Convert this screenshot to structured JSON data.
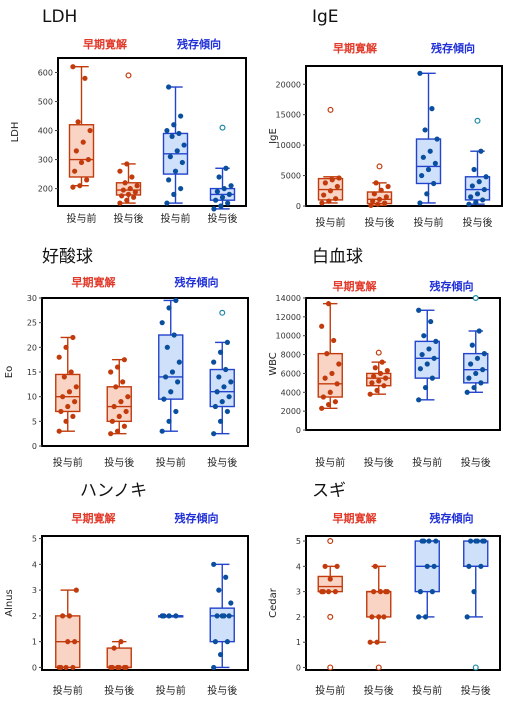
{
  "colors": {
    "early": "#c23b0c",
    "early_fill": "#f9d3c3",
    "residual": "#2244cc",
    "residual_fill": "#cfe0fb",
    "residual_point": "#0a4f9e"
  },
  "chart_data": [
    {
      "type": "box",
      "title": "LDH",
      "ylabel": "LDH",
      "group_labels": [
        "早期寛解",
        "残存傾向"
      ],
      "categories": [
        "投与前",
        "投与後",
        "投与前",
        "投与後"
      ],
      "yticks": [
        200,
        300,
        400,
        500,
        600
      ],
      "ylim": [
        140,
        650
      ],
      "series": [
        {
          "box": [
            210,
            240,
            300,
            420,
            620
          ],
          "points": [
            205,
            210,
            230,
            260,
            290,
            300,
            330,
            360,
            400,
            430,
            580,
            620
          ],
          "outliers": []
        },
        {
          "box": [
            150,
            178,
            195,
            220,
            285
          ],
          "points": [
            150,
            160,
            170,
            175,
            180,
            188,
            195,
            200,
            210,
            220,
            240,
            260,
            285
          ],
          "outliers": [
            590
          ]
        },
        {
          "box": [
            150,
            250,
            320,
            390,
            550
          ],
          "points": [
            150,
            180,
            200,
            230,
            260,
            290,
            310,
            330,
            350,
            380,
            390,
            400,
            420,
            450,
            550
          ],
          "outliers": []
        },
        {
          "box": [
            130,
            160,
            180,
            200,
            270
          ],
          "points": [
            130,
            140,
            150,
            160,
            170,
            180,
            190,
            200,
            210,
            240,
            270
          ],
          "outliers": [
            410
          ]
        }
      ]
    },
    {
      "type": "box",
      "title": "IgE",
      "ylabel": "IgE",
      "group_labels": [
        "早期寛解",
        "残存傾向"
      ],
      "categories": [
        "投与前",
        "投与後",
        "投与前",
        "投与後"
      ],
      "yticks": [
        0,
        5000,
        10000,
        15000,
        20000
      ],
      "ylim": [
        0,
        23000
      ],
      "series": [
        {
          "box": [
            500,
            1000,
            2700,
            4500,
            4800
          ],
          "points": [
            500,
            800,
            1200,
            1800,
            2500,
            3200,
            3800,
            4300,
            4600
          ],
          "outliers": [
            15800
          ]
        },
        {
          "box": [
            100,
            400,
            1100,
            2300,
            3800
          ],
          "points": [
            100,
            300,
            500,
            800,
            1100,
            1500,
            2000,
            2600,
            3200,
            3800
          ],
          "outliers": [
            6500
          ]
        },
        {
          "box": [
            500,
            3700,
            6500,
            11000,
            21800
          ],
          "points": [
            500,
            2000,
            3700,
            5000,
            6000,
            7000,
            8000,
            9000,
            11000,
            12500,
            16000,
            21800
          ],
          "outliers": []
        },
        {
          "box": [
            300,
            1000,
            2700,
            4800,
            9000
          ],
          "points": [
            300,
            600,
            1000,
            1500,
            2000,
            2700,
            3300,
            4000,
            4800,
            6000,
            9000
          ],
          "outliers": [
            14000
          ]
        }
      ]
    },
    {
      "type": "box",
      "title": "好酸球",
      "ylabel": "Eo",
      "group_labels": [
        "早期寛解",
        "残存傾向"
      ],
      "categories": [
        "投与前",
        "投与後",
        "投与前",
        "投与後"
      ],
      "yticks": [
        0,
        5,
        10,
        15,
        20,
        25,
        30
      ],
      "ylim": [
        0,
        30
      ],
      "series": [
        {
          "box": [
            3,
            7,
            10,
            14.5,
            22
          ],
          "points": [
            3,
            5,
            6,
            7,
            8,
            9,
            10,
            11,
            12,
            14,
            15,
            18,
            20,
            22
          ],
          "outliers": []
        },
        {
          "box": [
            2.5,
            5,
            8,
            12,
            17.5
          ],
          "points": [
            2.5,
            3,
            4,
            5,
            6,
            7,
            8,
            9,
            10,
            12,
            13,
            15,
            16,
            17.5
          ],
          "outliers": []
        },
        {
          "box": [
            3,
            9.5,
            14,
            22.5,
            29.5
          ],
          "points": [
            3,
            5,
            7,
            9.5,
            11,
            13,
            14,
            15,
            17,
            20,
            22.5,
            25,
            28,
            29.5
          ],
          "outliers": []
        },
        {
          "box": [
            2.5,
            8,
            11,
            15.5,
            21
          ],
          "points": [
            2.5,
            5,
            7,
            8,
            9,
            10,
            11,
            12,
            13,
            14,
            15.5,
            17,
            19,
            21
          ],
          "outliers": [
            27
          ]
        }
      ]
    },
    {
      "type": "box",
      "title": "白血球",
      "ylabel": "WBC",
      "group_labels": [
        "早期寛解",
        "残存傾向"
      ],
      "categories": [
        "投与前",
        "投与後",
        "投与前",
        "投与後"
      ],
      "yticks": [
        0,
        2000,
        4000,
        6000,
        8000,
        10000,
        12000,
        14000
      ],
      "ylim": [
        0,
        14000
      ],
      "series": [
        {
          "box": [
            2300,
            3500,
            4900,
            8100,
            13400
          ],
          "points": [
            2300,
            2700,
            3000,
            3500,
            4000,
            4900,
            5500,
            6000,
            7000,
            8100,
            9500,
            11000,
            13400
          ],
          "outliers": []
        },
        {
          "box": [
            3800,
            4700,
            5500,
            6000,
            7200
          ],
          "points": [
            3800,
            4200,
            4700,
            5000,
            5200,
            5500,
            5700,
            6000,
            6300,
            6600,
            7200
          ],
          "outliers": [
            8200
          ]
        },
        {
          "box": [
            3200,
            5500,
            7600,
            9400,
            12700
          ],
          "points": [
            3200,
            4500,
            5500,
            6500,
            7000,
            7600,
            8000,
            8600,
            9400,
            10000,
            11500,
            12700
          ],
          "outliers": []
        },
        {
          "box": [
            4000,
            5000,
            6400,
            8100,
            10500
          ],
          "points": [
            4000,
            4500,
            5000,
            5500,
            6000,
            6400,
            7000,
            7600,
            8100,
            9000,
            10500
          ],
          "outliers": [
            14000
          ]
        }
      ]
    },
    {
      "type": "box",
      "title": "ハンノキ",
      "ylabel": "Alnus",
      "group_labels": [
        "早期寛解",
        "残存傾向"
      ],
      "categories": [
        "投与前",
        "投与後",
        "投与前",
        "投与後"
      ],
      "yticks": [
        0,
        1,
        2,
        3,
        4,
        5
      ],
      "ylim": [
        -0.1,
        5.1
      ],
      "series": [
        {
          "box": [
            0,
            0,
            1,
            2,
            3
          ],
          "points": [
            0,
            0,
            0,
            0,
            1,
            1,
            2,
            2,
            3
          ],
          "outliers": []
        },
        {
          "box": [
            0,
            0,
            0,
            0.75,
            1
          ],
          "points": [
            0,
            0,
            0,
            0,
            0,
            0,
            0.75,
            1
          ],
          "outliers": []
        },
        {
          "box": [
            2,
            2,
            2,
            2,
            2
          ],
          "points": [
            2,
            2,
            2,
            2
          ],
          "outliers": []
        },
        {
          "box": [
            0,
            1,
            2,
            2.3,
            4
          ],
          "points": [
            0,
            0.5,
            1,
            1,
            2,
            2,
            2,
            2,
            2.5,
            3,
            3.5,
            4
          ],
          "outliers": []
        }
      ]
    },
    {
      "type": "box",
      "title": "スギ",
      "ylabel": "Cedar",
      "group_labels": [
        "早期寛解",
        "残存傾向"
      ],
      "categories": [
        "投与前",
        "投与後",
        "投与前",
        "投与後"
      ],
      "yticks": [
        0,
        1,
        2,
        3,
        4,
        5
      ],
      "ylim": [
        -0.1,
        5.2
      ],
      "series": [
        {
          "box": [
            3,
            3,
            3.2,
            3.6,
            4
          ],
          "points": [
            3,
            3,
            3,
            3,
            3.5,
            4,
            4
          ],
          "outliers": [
            0,
            2,
            5
          ]
        },
        {
          "box": [
            1,
            2,
            3,
            3,
            4
          ],
          "points": [
            1,
            1,
            2,
            2,
            2,
            3,
            3,
            3,
            3,
            4
          ],
          "outliers": [
            0
          ]
        },
        {
          "box": [
            2,
            3,
            4,
            5,
            5
          ],
          "points": [
            2,
            2,
            3,
            3,
            4,
            4,
            5,
            5,
            5,
            5
          ],
          "outliers": []
        },
        {
          "box": [
            2,
            4,
            4,
            5,
            5
          ],
          "points": [
            2,
            3,
            4,
            4,
            5,
            5,
            5,
            5,
            5
          ],
          "outliers": [
            0
          ]
        }
      ]
    }
  ]
}
